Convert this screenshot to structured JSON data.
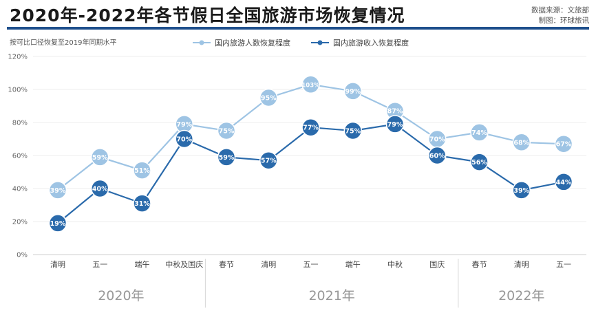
{
  "header": {
    "title": "2020年-2022年各节假日全国旅游市场恢复情况",
    "source_line1": "数据来源：文旅部",
    "source_line2": "制图：环球旅讯"
  },
  "note": "按可比口径恢复至2019年同期水平",
  "colors": {
    "visitors": "#9ec4e4",
    "revenue": "#2a6aab",
    "brand_bar": "#1e4f8c"
  },
  "chart_data": {
    "type": "line",
    "categories": [
      "清明",
      "五一",
      "端午",
      "中秋及国庆",
      "春节",
      "清明",
      "五一",
      "端午",
      "中秋",
      "国庆",
      "春节",
      "清明",
      "五一"
    ],
    "groups": [
      {
        "label": "2020年",
        "span": [
          0,
          3
        ]
      },
      {
        "label": "2021年",
        "span": [
          4,
          9
        ]
      },
      {
        "label": "2022年",
        "span": [
          10,
          12
        ]
      }
    ],
    "series": [
      {
        "name": "国内旅游人数恢复程度",
        "values": [
          39,
          59,
          51,
          79,
          75,
          95,
          103,
          99,
          87,
          70,
          74,
          68,
          67
        ],
        "labels": [
          "39%",
          "59%",
          "51%",
          "79%",
          "75%",
          "95%",
          "103%",
          "99%",
          "87%",
          "70%",
          "74%",
          "68%",
          "67%"
        ]
      },
      {
        "name": "国内旅游收入恢复程度",
        "values": [
          19,
          40,
          31,
          70,
          59,
          57,
          77,
          75,
          79,
          60,
          56,
          39,
          44
        ],
        "labels": [
          "19%",
          "40%",
          "31%",
          "70%",
          "59%",
          "57%",
          "77%",
          "75%",
          "79%",
          "60%",
          "56%",
          "39%",
          "44%"
        ]
      }
    ],
    "yticks": [
      "0%",
      "20%",
      "40%",
      "60%",
      "80%",
      "100%",
      "120%"
    ],
    "ylim": [
      0,
      120
    ],
    "grid": true,
    "legend_position": "top-center"
  }
}
